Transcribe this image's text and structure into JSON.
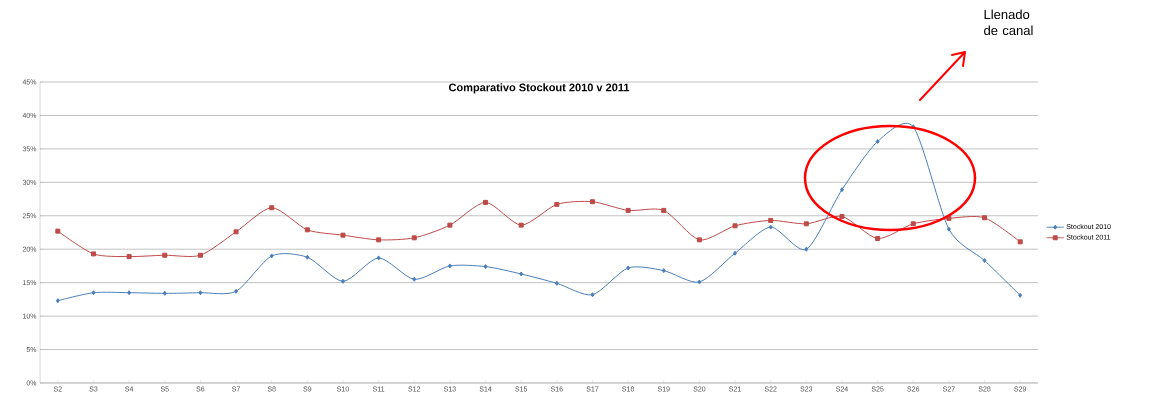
{
  "chart_data": {
    "type": "line",
    "title": "Comparativo Stockout 2010 v 2011",
    "categories": [
      "S2",
      "S3",
      "S4",
      "S5",
      "S6",
      "S7",
      "S8",
      "S9",
      "S10",
      "S11",
      "S12",
      "S13",
      "S14",
      "S15",
      "S16",
      "S17",
      "S18",
      "S19",
      "S20",
      "S21",
      "S22",
      "S23",
      "S24",
      "S25",
      "S26",
      "S27",
      "S28",
      "S29"
    ],
    "series": [
      {
        "name": "Stockout 2010",
        "color": "#4a7ebb",
        "marker": "diamond",
        "values": [
          12.3,
          13.5,
          13.5,
          13.4,
          13.5,
          13.7,
          19.0,
          18.8,
          15.2,
          18.7,
          15.5,
          17.5,
          17.4,
          16.3,
          14.9,
          13.2,
          17.2,
          16.8,
          15.1,
          19.4,
          23.3,
          20.0,
          28.9,
          36.1,
          38.3,
          23.0,
          18.3,
          13.1
        ]
      },
      {
        "name": "Stockout 2011",
        "color": "#be4b48",
        "marker": "square",
        "values": [
          22.7,
          19.3,
          18.9,
          19.1,
          19.1,
          22.6,
          26.2,
          22.9,
          22.1,
          21.4,
          21.7,
          23.6,
          27.0,
          23.6,
          26.7,
          27.1,
          25.8,
          25.8,
          21.4,
          23.5,
          24.3,
          23.8,
          24.9,
          21.6,
          23.8,
          24.6,
          24.7,
          21.1
        ]
      }
    ],
    "ylim": [
      0,
      45
    ],
    "yticks": [
      {
        "value": 0,
        "label": "0%"
      },
      {
        "value": 5,
        "label": "5%"
      },
      {
        "value": 10,
        "label": "10%"
      },
      {
        "value": 15,
        "label": "15%"
      },
      {
        "value": 20,
        "label": "20%"
      },
      {
        "value": 25,
        "label": "25%"
      },
      {
        "value": 30,
        "label": "30%"
      },
      {
        "value": 35,
        "label": "35%"
      },
      {
        "value": 40,
        "label": "40%"
      },
      {
        "value": 45,
        "label": "45%"
      }
    ],
    "grid": "y",
    "legend": "right",
    "line_style": "solid",
    "annotations": [
      "Llenado de canal"
    ]
  }
}
